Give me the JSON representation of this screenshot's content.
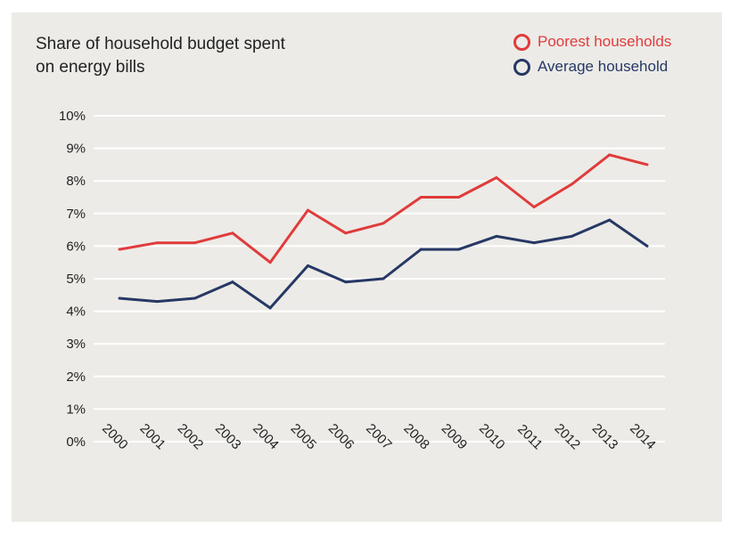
{
  "chart_data": {
    "type": "line",
    "title": "Share of household budget spent on energy bills",
    "title_lines": [
      "Share of household budget spent",
      "on energy bills"
    ],
    "xlabel": "",
    "ylabel": "",
    "categories": [
      "2000",
      "2001",
      "2002",
      "2003",
      "2004",
      "2005",
      "2006",
      "2007",
      "2008",
      "2009",
      "2010",
      "2011",
      "2012",
      "2013",
      "2014"
    ],
    "ylim": [
      0,
      10
    ],
    "yticks": [
      0,
      1,
      2,
      3,
      4,
      5,
      6,
      7,
      8,
      9,
      10
    ],
    "ytick_labels": [
      "0%",
      "1%",
      "2%",
      "3%",
      "4%",
      "5%",
      "6%",
      "7%",
      "8%",
      "9%",
      "10%"
    ],
    "grid": "horizontal",
    "legend_position": "top-right",
    "series": [
      {
        "name": "Poorest households",
        "color": "#e03c3c",
        "values": [
          5.9,
          6.1,
          6.1,
          6.4,
          5.5,
          7.1,
          6.4,
          6.7,
          7.5,
          7.5,
          8.1,
          7.2,
          7.9,
          8.8,
          8.5
        ]
      },
      {
        "name": "Average household",
        "color": "#263865",
        "values": [
          4.4,
          4.3,
          4.4,
          4.9,
          4.1,
          5.4,
          4.9,
          5.0,
          5.9,
          5.9,
          6.3,
          6.1,
          6.3,
          6.8,
          6.0
        ]
      }
    ]
  },
  "colors": {
    "background": "#ecebe7",
    "gridline": "#ffffff",
    "text": "#222222"
  }
}
